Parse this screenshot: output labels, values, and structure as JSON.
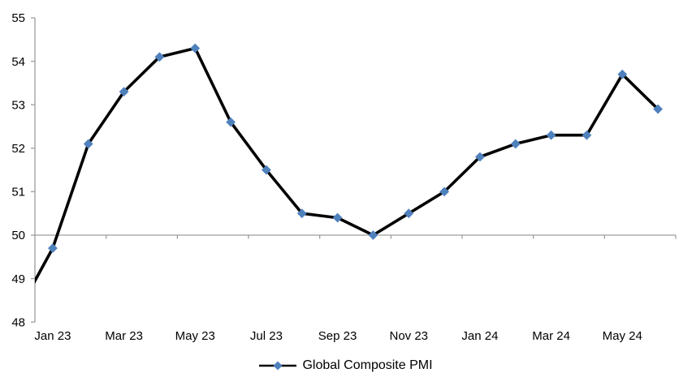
{
  "chart_data": {
    "type": "line",
    "title": "",
    "categories": [
      "Jan 23",
      "Feb 23",
      "Mar 23",
      "Apr 23",
      "May 23",
      "Jun 23",
      "Jul 23",
      "Aug 23",
      "Sep 23",
      "Oct 23",
      "Nov 23",
      "Dec 23",
      "Jan 24",
      "Feb 24",
      "Mar 24",
      "Apr 24",
      "May 24",
      "Jun 24"
    ],
    "series": [
      {
        "name": "Global Composite PMI",
        "values": [
          49.7,
          52.1,
          53.3,
          54.1,
          54.3,
          52.6,
          51.5,
          50.5,
          50.4,
          50.0,
          50.5,
          51.0,
          51.8,
          52.1,
          52.3,
          52.3,
          53.7,
          52.9
        ],
        "line_color": "#000000",
        "marker_color": "#4F81BD",
        "marker_shape": "diamond"
      }
    ],
    "leadin_point": {
      "category": "Dec 22",
      "value": 48.2,
      "clipped_outside_left_edge": true
    },
    "x_tick_labels": [
      "Jan 23",
      "Mar 23",
      "May 23",
      "Jul 23",
      "Sep 23",
      "Nov 23",
      "Jan 24",
      "Mar 24",
      "May 24"
    ],
    "y_ticks": [
      48,
      49,
      50,
      51,
      52,
      53,
      54,
      55
    ],
    "ylim": [
      48,
      55
    ],
    "x_axis_cross_value": 50,
    "grid": "none",
    "legend_position": "bottom-center",
    "axis_color": "#9d9d9d",
    "label_color": "#000000"
  }
}
